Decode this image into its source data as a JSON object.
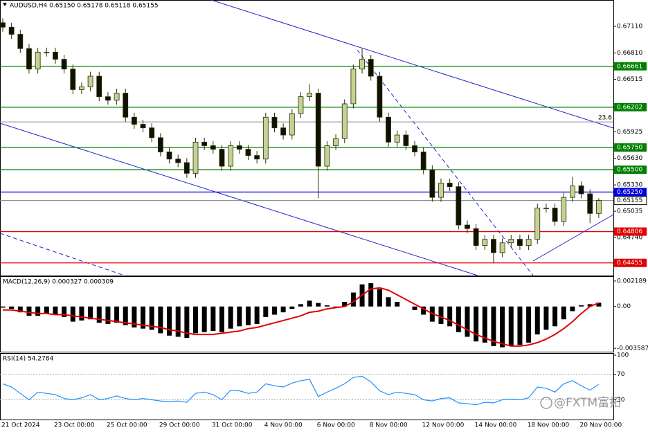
{
  "chart_data": [
    {
      "type": "candlestick",
      "title": "AUDUSD,H4  0.65150 0.65178 0.65118 0.65155",
      "categories": [
        "21 Oct 2024",
        null,
        null,
        null,
        null,
        null,
        "23 Oct 00:00",
        null,
        null,
        null,
        null,
        null,
        "25 Oct 00:00",
        null,
        null,
        null,
        null,
        null,
        "29 Oct 00:00",
        null,
        null,
        null,
        null,
        null,
        "31 Oct 00:00",
        null,
        null,
        null,
        null,
        null,
        "4 Nov 00:00",
        null,
        null,
        null,
        null,
        null,
        "6 Nov 00:00",
        null,
        null,
        null,
        null,
        null,
        "8 Nov 00:00",
        null,
        null,
        null,
        null,
        null,
        "12 Nov 00:00",
        null,
        null,
        null,
        null,
        null,
        "14 Nov 00:00",
        null,
        null,
        null,
        null,
        null,
        "18 Nov 00:00",
        null,
        null,
        null,
        null,
        null,
        "20 Nov 00:00",
        null,
        null
      ],
      "open": [
        0.6715,
        0.671,
        0.6702,
        0.6686,
        0.6663,
        0.6682,
        0.6682,
        0.6674,
        0.6663,
        0.664,
        0.6643,
        0.6655,
        0.6632,
        0.6628,
        0.6636,
        0.6609,
        0.6601,
        0.6597,
        0.6586,
        0.657,
        0.6562,
        0.6558,
        0.6546,
        0.6581,
        0.6577,
        0.6573,
        0.6554,
        0.6577,
        0.6573,
        0.6566,
        0.6562,
        0.6609,
        0.6597,
        0.6589,
        0.6613,
        0.6632,
        0.6636,
        0.6554,
        0.6577,
        0.6585,
        0.6624,
        0.6663,
        0.6674,
        0.6655,
        0.6609,
        0.6581,
        0.6589,
        0.6577,
        0.657,
        0.655,
        0.6519,
        0.6535,
        0.6531,
        0.6488,
        0.6484,
        0.6465,
        0.6472,
        0.6457,
        0.6468,
        0.6472,
        0.6465,
        0.6472,
        0.6507,
        0.6507,
        0.6492,
        0.6519,
        0.6532,
        0.6523,
        0.6501
      ],
      "high": [
        0.672,
        0.6715,
        0.6707,
        0.6691,
        0.6687,
        0.6687,
        0.6687,
        0.6679,
        0.6668,
        0.6648,
        0.666,
        0.666,
        0.6637,
        0.6641,
        0.6641,
        0.6614,
        0.6606,
        0.6602,
        0.6591,
        0.6575,
        0.6567,
        0.6563,
        0.6586,
        0.6586,
        0.6582,
        0.6578,
        0.6582,
        0.6582,
        0.6578,
        0.6571,
        0.6614,
        0.6614,
        0.6602,
        0.6618,
        0.6637,
        0.6646,
        0.6641,
        0.6582,
        0.659,
        0.6629,
        0.6668,
        0.6686,
        0.6679,
        0.666,
        0.6614,
        0.6594,
        0.6594,
        0.6582,
        0.6575,
        0.6555,
        0.654,
        0.654,
        0.6536,
        0.6493,
        0.6489,
        0.6477,
        0.6477,
        0.6473,
        0.6477,
        0.6477,
        0.6477,
        0.6512,
        0.6512,
        0.6512,
        0.6524,
        0.6542,
        0.6537,
        0.6528,
        0.6518
      ],
      "low": [
        0.6705,
        0.6697,
        0.6681,
        0.6658,
        0.6658,
        0.6677,
        0.6669,
        0.6658,
        0.6635,
        0.6635,
        0.6638,
        0.6627,
        0.6623,
        0.6623,
        0.6604,
        0.6596,
        0.6592,
        0.6581,
        0.6565,
        0.6557,
        0.6553,
        0.6541,
        0.6541,
        0.6572,
        0.6568,
        0.6549,
        0.6549,
        0.6568,
        0.6561,
        0.6557,
        0.6557,
        0.6592,
        0.6584,
        0.6584,
        0.6608,
        0.6627,
        0.6518,
        0.6549,
        0.6572,
        0.658,
        0.6619,
        0.6658,
        0.665,
        0.6604,
        0.6576,
        0.6576,
        0.6572,
        0.6565,
        0.6545,
        0.6514,
        0.6514,
        0.6526,
        0.6483,
        0.6479,
        0.646,
        0.646,
        0.6445,
        0.6452,
        0.6463,
        0.646,
        0.646,
        0.6467,
        0.6502,
        0.6487,
        0.6487,
        0.6514,
        0.6518,
        0.649,
        0.6496
      ],
      "close": [
        0.671,
        0.6702,
        0.6686,
        0.6663,
        0.6682,
        0.6682,
        0.6674,
        0.6663,
        0.664,
        0.6643,
        0.6655,
        0.6632,
        0.6628,
        0.6636,
        0.6609,
        0.6601,
        0.6597,
        0.6586,
        0.657,
        0.6562,
        0.6558,
        0.6546,
        0.6581,
        0.6577,
        0.6573,
        0.6554,
        0.6577,
        0.6573,
        0.6566,
        0.6562,
        0.6609,
        0.6597,
        0.6589,
        0.6613,
        0.6632,
        0.6636,
        0.6554,
        0.6577,
        0.6585,
        0.6624,
        0.6663,
        0.6674,
        0.6655,
        0.6609,
        0.6581,
        0.6589,
        0.6577,
        0.657,
        0.655,
        0.6519,
        0.6535,
        0.6531,
        0.6488,
        0.6484,
        0.6465,
        0.6472,
        0.6457,
        0.6468,
        0.6472,
        0.6465,
        0.6472,
        0.6507,
        0.6507,
        0.6492,
        0.6519,
        0.6532,
        0.6523,
        0.6501,
        0.65155
      ],
      "up_color": "#c2d394",
      "down_color": "#111100",
      "outline_color": "#2a2a00",
      "ylim": [
        0.64313,
        0.67405
      ],
      "yticks": [
        {
          "value": 0.6711,
          "label": "0.67110"
        },
        {
          "value": 0.6681,
          "label": "0.66810"
        },
        {
          "value": 0.66515,
          "label": "0.66515"
        },
        {
          "value": 0.65925,
          "label": "0.65925"
        },
        {
          "value": 0.6563,
          "label": "0.65630"
        },
        {
          "value": 0.6533,
          "label": "0.65330"
        },
        {
          "value": 0.65035,
          "label": "0.65035"
        },
        {
          "value": 0.6474,
          "label": "0.64740"
        }
      ],
      "levels": [
        {
          "value": 0.66661,
          "label": "0.66661",
          "color": "#008000"
        },
        {
          "value": 0.66202,
          "label": "0.66202",
          "color": "#008000"
        },
        {
          "value": 0.6575,
          "label": "0.65750",
          "color": "#008000"
        },
        {
          "value": 0.655,
          "label": "0.65500",
          "color": "#008000"
        },
        {
          "value": 0.6525,
          "label": "0.65250",
          "color": "#0000e0"
        },
        {
          "value": 0.64806,
          "label": "0.64806",
          "color": "#e00000"
        },
        {
          "value": 0.64455,
          "label": "0.64455",
          "color": "#e00000"
        }
      ],
      "current_price": {
        "value": 0.65155,
        "label": "0.65155"
      },
      "fib_level": {
        "value": 0.66037,
        "label": "23.6"
      }
    },
    {
      "type": "macd",
      "title": "MACD(12,26,9) 0.000327 0.000309",
      "histogram": [
        -0.0001,
        -0.0002,
        -0.0005,
        -0.0008,
        -0.0008,
        -0.0006,
        -0.0007,
        -0.0009,
        -0.0013,
        -0.0012,
        -0.0011,
        -0.0014,
        -0.0015,
        -0.0014,
        -0.0016,
        -0.0018,
        -0.0019,
        -0.002,
        -0.0023,
        -0.0025,
        -0.0026,
        -0.0027,
        -0.0023,
        -0.0022,
        -0.0021,
        -0.0022,
        -0.0019,
        -0.0017,
        -0.0016,
        -0.0015,
        -0.0009,
        -0.0007,
        -0.0005,
        -0.0002,
        0.0002,
        0.0005,
        0.0003,
        0.0001,
        -0.0001,
        0.0004,
        0.0012,
        0.0019,
        0.002,
        0.0015,
        0.0008,
        0.0004,
        0,
        -0.0003,
        -0.0007,
        -0.0013,
        -0.0015,
        -0.0017,
        -0.0022,
        -0.0026,
        -0.003,
        -0.0031,
        -0.0034,
        -0.0035,
        -0.0034,
        -0.0033,
        -0.0031,
        -0.0024,
        -0.002,
        -0.0017,
        -0.0011,
        -0.0004,
        0.0001,
        0.0002,
        0.000327
      ],
      "signal": [
        -0.0003,
        -0.0003,
        -0.0004,
        -0.0005,
        -0.0006,
        -0.0006,
        -0.0007,
        -0.0007,
        -0.0008,
        -0.0009,
        -0.001,
        -0.0011,
        -0.0012,
        -0.0013,
        -0.0014,
        -0.0015,
        -0.0016,
        -0.0017,
        -0.0018,
        -0.002,
        -0.0021,
        -0.0023,
        -0.0024,
        -0.0024,
        -0.0024,
        -0.0023,
        -0.0022,
        -0.0021,
        -0.0019,
        -0.0018,
        -0.0016,
        -0.0014,
        -0.0012,
        -0.001,
        -0.0008,
        -0.0005,
        -0.0004,
        -0.0002,
        -0.0001,
        0,
        0.0004,
        0.001,
        0.0015,
        0.0016,
        0.0014,
        0.001,
        0.0006,
        0.0002,
        -0.0002,
        -0.0006,
        -0.0009,
        -0.0012,
        -0.0016,
        -0.002,
        -0.0024,
        -0.0027,
        -0.003,
        -0.0032,
        -0.0034,
        -0.0034,
        -0.0033,
        -0.0031,
        -0.0028,
        -0.0024,
        -0.0019,
        -0.0013,
        -0.0006,
        0,
        0.000309
      ],
      "histogram_color": "#000000",
      "signal_color": "#e00000",
      "ylim": [
        -0.00388,
        0.00254
      ],
      "yticks": [
        0.002189,
        {
          "value": 0,
          "label": "0.00"
        },
        -0.003587
      ]
    },
    {
      "type": "line",
      "title": "RSI(14) 54.2784",
      "values": [
        55,
        50,
        40,
        30,
        42,
        40,
        38,
        32,
        30,
        33,
        38,
        30,
        32,
        36,
        32,
        30,
        32,
        30,
        28,
        27,
        28,
        26,
        40,
        42,
        38,
        30,
        45,
        44,
        40,
        42,
        55,
        52,
        50,
        56,
        60,
        62,
        35,
        42,
        48,
        55,
        65,
        67,
        58,
        44,
        38,
        42,
        40,
        38,
        30,
        28,
        32,
        33,
        25,
        24,
        22,
        26,
        25,
        30,
        31,
        30,
        33,
        50,
        48,
        42,
        55,
        60,
        52,
        45,
        54.2784
      ],
      "color": "#1e90ff",
      "ylim": [
        0,
        100
      ],
      "yticks": [
        100,
        70,
        30
      ],
      "dashed_levels": [
        70,
        30
      ]
    }
  ],
  "watermark": "@FXTM富拓"
}
